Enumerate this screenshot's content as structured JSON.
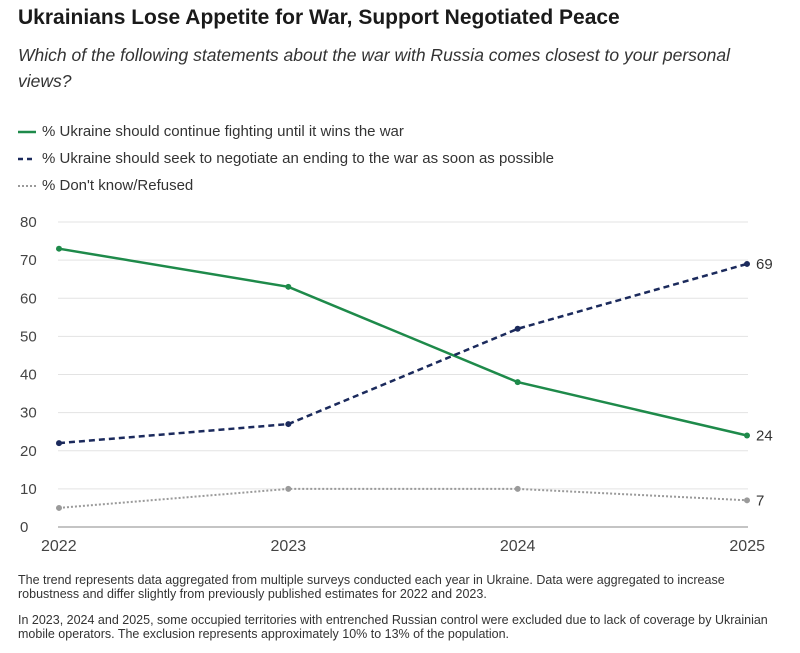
{
  "title": "Ukrainians Lose Appetite for War, Support Negotiated Peace",
  "subtitle": "Which of the following statements about the war with Russia comes closest to your personal views?",
  "notes": [
    "The trend represents data aggregated from multiple surveys conducted each year in Ukraine. Data were aggregated to increase robustness and differ slightly from previously published estimates for 2022 and 2023.",
    "In 2023, 2024 and 2025, some occupied territories with entrenched Russian control were excluded due to lack of coverage by Ukrainian mobile operators. The exclusion represents approximately 10% to 13% of the population."
  ],
  "chart_data": {
    "type": "line",
    "title": "Ukrainians Lose Appetite for War, Support Negotiated Peace",
    "x": [
      "2022",
      "2023",
      "2024",
      "2025"
    ],
    "ylim": [
      0,
      80
    ],
    "yticks": [
      "0",
      "10",
      "20",
      "30",
      "40",
      "50",
      "60",
      "70",
      "80"
    ],
    "grid": true,
    "series": [
      {
        "name": "% Ukraine should continue fighting until it wins the war",
        "values": [
          73,
          63,
          38,
          24
        ],
        "color": "#1e8a4a",
        "style": "solid",
        "end_label": "24"
      },
      {
        "name": "% Ukraine should seek to negotiate an ending to the war as soon as possible",
        "values": [
          22,
          27,
          52,
          69
        ],
        "color": "#1b2a5c",
        "style": "dashed",
        "end_label": "69"
      },
      {
        "name": "% Don't know/Refused",
        "values": [
          5,
          10,
          10,
          7
        ],
        "color": "#9a9a9a",
        "style": "dotted",
        "end_label": "7"
      }
    ]
  }
}
